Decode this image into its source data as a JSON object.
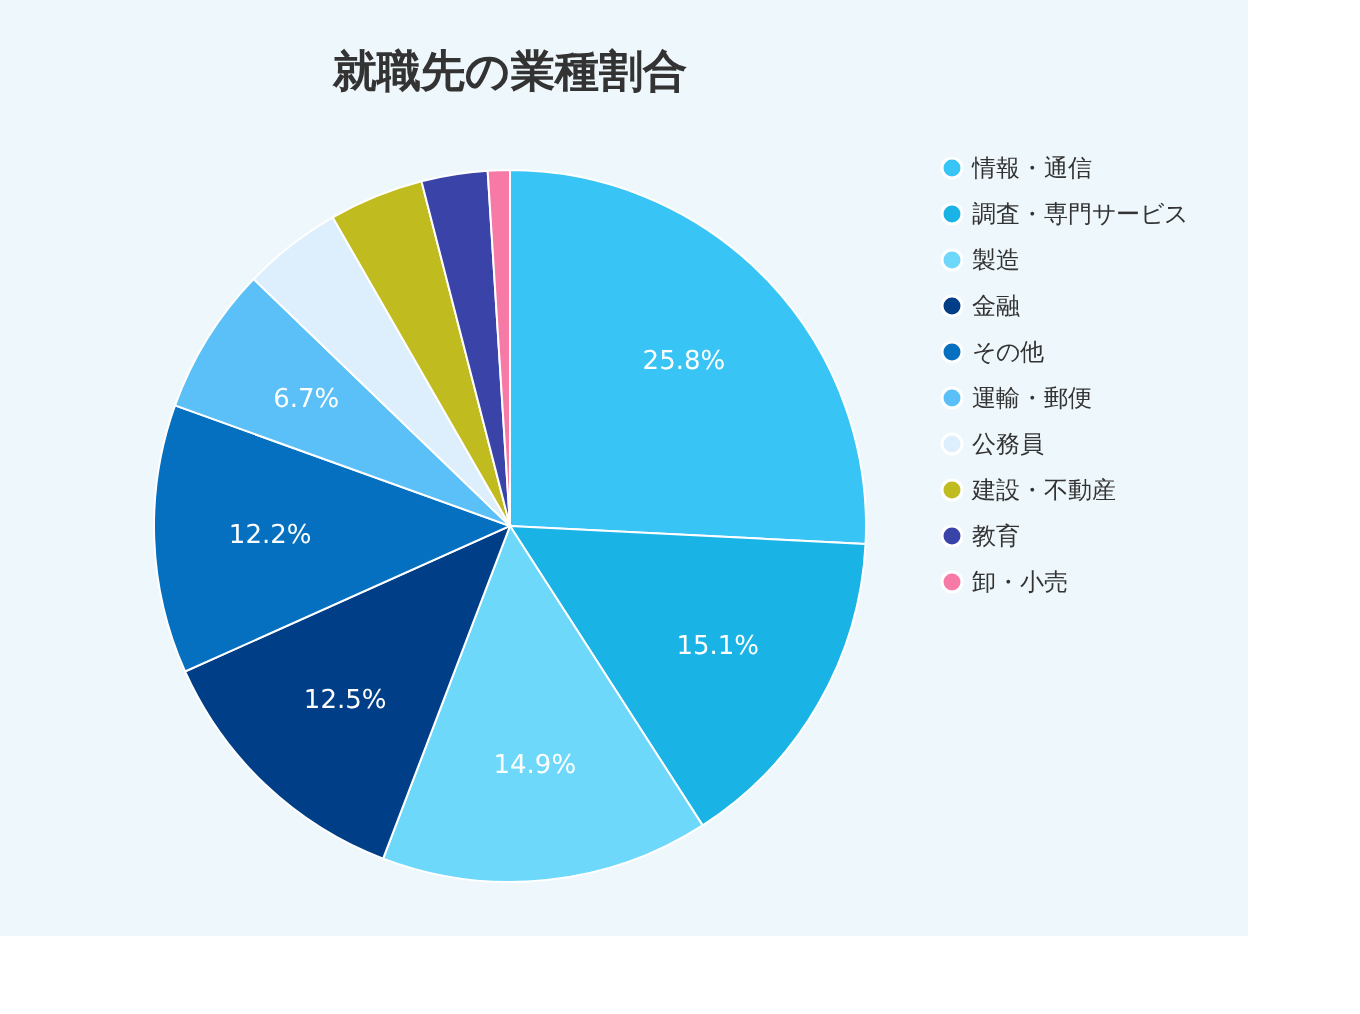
{
  "chart_data": {
    "type": "pie",
    "title": "就職先の業種割合",
    "categories": [
      "情報・通信",
      "調査・専門サービス",
      "製造",
      "金融",
      "その他",
      "運輸・郵便",
      "公務員",
      "建設・不動産",
      "教育",
      "卸・小売"
    ],
    "values": [
      25.8,
      15.1,
      14.9,
      12.5,
      12.2,
      6.7,
      4.5,
      4.3,
      3.0,
      1.0
    ],
    "value_labels": [
      "25.8%",
      "15.1%",
      "14.9%",
      "12.5%",
      "12.2%",
      "6.7%",
      null,
      null,
      null,
      null
    ],
    "colors": [
      "#38c4f5",
      "#1ab3e6",
      "#6dd8fa",
      "#003f88",
      "#0570c0",
      "#5bc0f8",
      "#ddeefc",
      "#c0bb1e",
      "#3a44a8",
      "#f77aa6"
    ],
    "legend": "right"
  }
}
